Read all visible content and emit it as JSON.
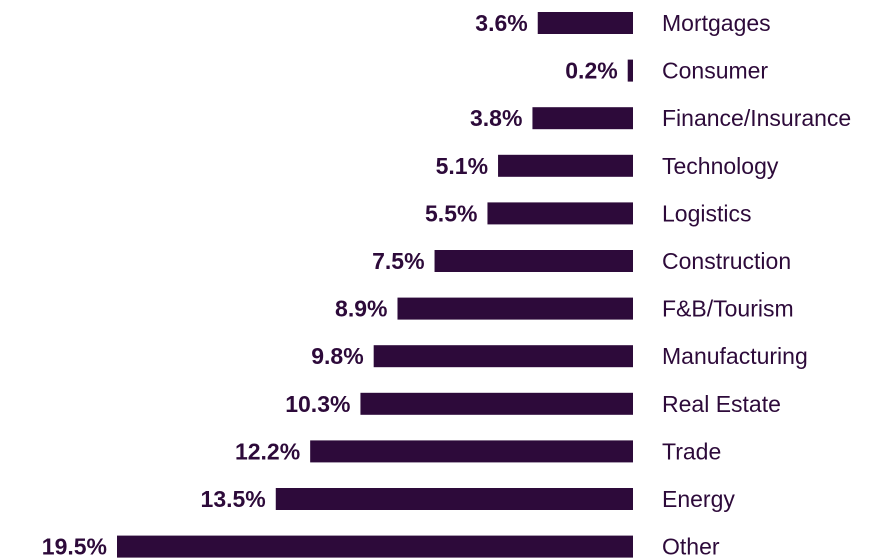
{
  "chart_data": {
    "type": "barh",
    "categories": [
      "Mortgages",
      "Consumer",
      "Finance/Insurance",
      "Technology",
      "Logistics",
      "Construction",
      "F&B/Tourism",
      "Manufacturing",
      "Real Estate",
      "Trade",
      "Energy",
      "Other"
    ],
    "values": [
      3.6,
      0.2,
      3.8,
      5.1,
      5.5,
      7.5,
      8.9,
      9.8,
      10.3,
      12.2,
      13.5,
      19.5
    ],
    "value_labels": [
      "3.6%",
      "0.2%",
      "3.8%",
      "5.1%",
      "5.5%",
      "7.5%",
      "8.9%",
      "9.8%",
      "10.3%",
      "12.2%",
      "13.5%",
      "19.5%"
    ],
    "color": "#2d0a3a"
  }
}
